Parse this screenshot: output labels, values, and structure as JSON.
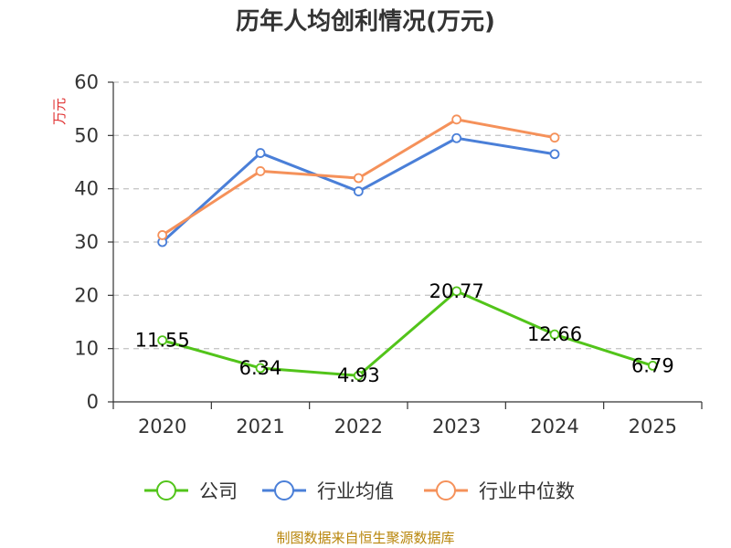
{
  "chart_data": {
    "type": "line",
    "title": "历年人均创利情况(万元)",
    "ylabel": "万元",
    "xlabel": "",
    "categories": [
      "2020",
      "2021",
      "2022",
      "2023",
      "2024",
      "2025"
    ],
    "ylim": [
      0,
      60
    ],
    "yticks": [
      0,
      10,
      20,
      30,
      40,
      50,
      60
    ],
    "grid": true,
    "legend_position": "bottom",
    "series": [
      {
        "name": "公司",
        "color": "#52c41a",
        "values": [
          11.55,
          6.34,
          4.93,
          20.77,
          12.66,
          6.79
        ],
        "labels": [
          "11.55",
          "6.34",
          "4.93",
          "20.77",
          "12.66",
          "6.79"
        ]
      },
      {
        "name": "行业均值",
        "color": "#4a7fd8",
        "values": [
          30.0,
          46.7,
          39.5,
          49.5,
          46.5,
          null
        ]
      },
      {
        "name": "行业中位数",
        "color": "#f5915a",
        "values": [
          31.3,
          43.3,
          42.0,
          53.0,
          49.6,
          null
        ]
      }
    ]
  },
  "source": "制图数据来自恒生聚源数据库"
}
